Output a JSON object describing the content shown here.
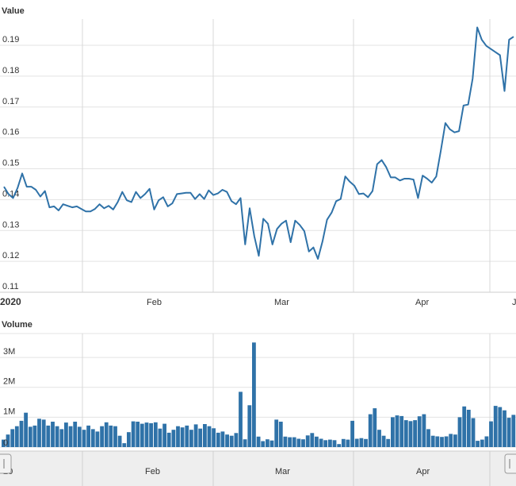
{
  "chart_data": [
    {
      "type": "line",
      "title": "Value",
      "ylim": [
        0.11,
        0.1985
      ],
      "yticks": [
        "0.11",
        "0.12",
        "0.13",
        "0.14",
        "0.15",
        "0.16",
        "0.17",
        "0.18",
        "0.19"
      ],
      "xticks": [
        {
          "label": "2020",
          "bold": true
        },
        {
          "label": "Feb",
          "bold": false
        },
        {
          "label": "Mar",
          "bold": false
        },
        {
          "label": "Apr",
          "bold": false
        },
        {
          "label": "J",
          "bold": false
        }
      ],
      "grid": true,
      "colors": {
        "line": "#2f72a8"
      },
      "series": [
        {
          "values": [
            0.1442,
            0.1418,
            0.1405,
            0.1438,
            0.1485,
            0.1442,
            0.1442,
            0.1432,
            0.141,
            0.1428,
            0.1375,
            0.1378,
            0.1365,
            0.1385,
            0.138,
            0.1375,
            0.1378,
            0.137,
            0.1362,
            0.1362,
            0.137,
            0.1385,
            0.1372,
            0.138,
            0.1368,
            0.1392,
            0.1425,
            0.1398,
            0.1392,
            0.1425,
            0.1405,
            0.1418,
            0.1435,
            0.1368,
            0.1398,
            0.1408,
            0.1378,
            0.1388,
            0.1418,
            0.142,
            0.1422,
            0.1422,
            0.1402,
            0.1418,
            0.1402,
            0.143,
            0.1415,
            0.142,
            0.1432,
            0.1425,
            0.1395,
            0.1385,
            0.1405,
            0.1255,
            0.1372,
            0.1282,
            0.1218,
            0.1338,
            0.1322,
            0.1255,
            0.1305,
            0.1322,
            0.1332,
            0.1262,
            0.1332,
            0.1318,
            0.1298,
            0.1232,
            0.1245,
            0.1208,
            0.1265,
            0.1335,
            0.1358,
            0.1395,
            0.1402,
            0.1475,
            0.1458,
            0.1445,
            0.1418,
            0.142,
            0.1408,
            0.1428,
            0.1515,
            0.1528,
            0.1505,
            0.1472,
            0.1472,
            0.1462,
            0.1468,
            0.1468,
            0.1465,
            0.1405,
            0.1478,
            0.1468,
            0.1455,
            0.1475,
            0.1558,
            0.1648,
            0.1628,
            0.1618,
            0.1622,
            0.1705,
            0.1708,
            0.1792,
            0.1958,
            0.1918,
            0.1898,
            0.1888,
            0.1878,
            0.1868,
            0.1752,
            0.1918,
            0.1928
          ]
        }
      ]
    },
    {
      "type": "bar",
      "title": "Volume",
      "ylim": [
        0,
        3800000
      ],
      "yticks": [
        {
          "value": 0,
          "label": "0"
        },
        {
          "value": 1000000,
          "label": "1M"
        },
        {
          "value": 2000000,
          "label": "2M"
        },
        {
          "value": 3000000,
          "label": "3M"
        }
      ],
      "grid": true,
      "colors": {
        "bar": "#2f72a8"
      },
      "series": [
        {
          "values": [
            250000,
            420000,
            600000,
            700000,
            880000,
            1150000,
            680000,
            720000,
            950000,
            920000,
            720000,
            850000,
            700000,
            600000,
            820000,
            700000,
            850000,
            680000,
            580000,
            720000,
            600000,
            520000,
            700000,
            830000,
            720000,
            700000,
            380000,
            130000,
            500000,
            860000,
            850000,
            780000,
            820000,
            800000,
            830000,
            620000,
            780000,
            480000,
            580000,
            700000,
            660000,
            720000,
            580000,
            760000,
            620000,
            770000,
            700000,
            630000,
            480000,
            520000,
            420000,
            380000,
            470000,
            1850000,
            260000,
            1400000,
            3500000,
            350000,
            200000,
            260000,
            220000,
            920000,
            850000,
            350000,
            330000,
            330000,
            280000,
            260000,
            390000,
            470000,
            350000,
            280000,
            230000,
            250000,
            230000,
            100000,
            270000,
            250000,
            880000,
            280000,
            300000,
            270000,
            1100000,
            1300000,
            580000,
            380000,
            270000,
            1000000,
            1060000,
            1040000,
            900000,
            870000,
            900000,
            1030000,
            1100000,
            600000,
            380000,
            360000,
            340000,
            360000,
            440000,
            420000,
            1000000,
            1360000,
            1250000,
            970000,
            210000,
            250000,
            360000,
            860000,
            1380000,
            1340000,
            1230000,
            980000,
            1080000
          ]
        }
      ]
    },
    {
      "type": "navigator",
      "xticks": [
        "20",
        "Feb",
        "Mar",
        "Apr"
      ]
    }
  ]
}
